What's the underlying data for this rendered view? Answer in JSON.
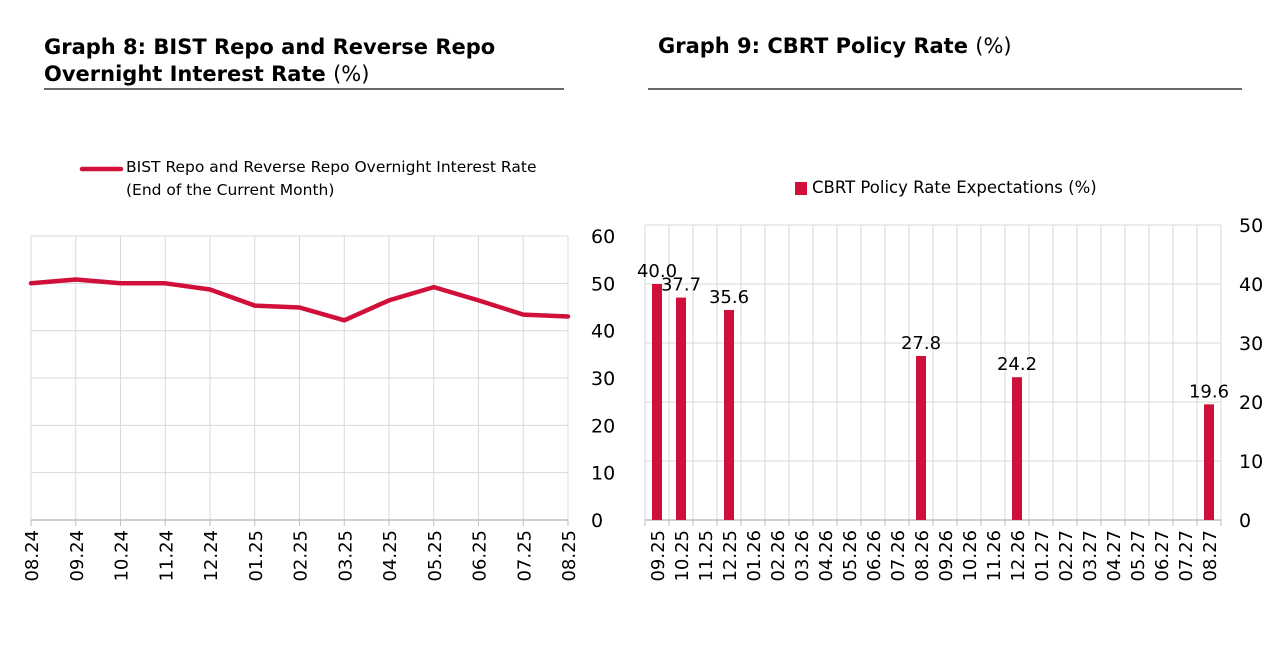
{
  "graph8": {
    "title": "Graph 8: BIST Repo and Reverse Repo Overnight Interest Rate",
    "unit": "(%)"
  },
  "graph9": {
    "title": "Graph 9: CBRT Policy Rate",
    "unit": "(%)"
  },
  "colors": {
    "series": "#d0103a",
    "grid": "#d9d9d9",
    "axis": "#bfbfbf",
    "rule": "#6b6b6b"
  },
  "chart_data": [
    {
      "type": "line",
      "title": "Graph 8: BIST Repo and Reverse Repo Overnight Interest Rate (%)",
      "legend": [
        "BIST Repo and Reverse Repo Overnight Interest Rate",
        "(End of the Current Month)"
      ],
      "legend_position": "top",
      "categories": [
        "08.24",
        "09.24",
        "10.24",
        "11.24",
        "12.24",
        "01.25",
        "02.25",
        "03.25",
        "04.25",
        "05.25",
        "06.25",
        "07.25",
        "08.25"
      ],
      "series": [
        {
          "name": "BIST Repo and Reverse Repo Overnight Interest Rate (End of the Current Month)",
          "values": [
            50.0,
            50.8,
            50.0,
            50.0,
            48.7,
            45.3,
            44.9,
            42.2,
            46.4,
            49.2,
            46.4,
            43.4,
            43.0
          ]
        }
      ],
      "yticks": [
        0,
        10,
        20,
        30,
        40,
        50,
        60
      ],
      "ylim": [
        0,
        60
      ],
      "y_axis_side": "right",
      "grid": true
    },
    {
      "type": "bar",
      "title": "Graph 9: CBRT Policy Rate (%)",
      "legend": [
        "CBRT Policy Rate Expectations (%)"
      ],
      "legend_position": "top",
      "categories": [
        "09.25",
        "10.25",
        "11.25",
        "12.25",
        "01.26",
        "02.26",
        "03.26",
        "04.26",
        "05.26",
        "06.26",
        "07.26",
        "08.26",
        "09.26",
        "10.26",
        "11.26",
        "12.26",
        "01.27",
        "02.27",
        "03.27",
        "04.27",
        "05.27",
        "06.27",
        "07.27",
        "08.27"
      ],
      "series": [
        {
          "name": "CBRT Policy Rate Expectations (%)",
          "values": [
            40.0,
            37.7,
            null,
            35.6,
            null,
            null,
            null,
            null,
            null,
            null,
            null,
            27.8,
            null,
            null,
            null,
            24.2,
            null,
            null,
            null,
            null,
            null,
            null,
            null,
            19.6
          ]
        }
      ],
      "data_labels": [
        "40.0",
        "37.7",
        "",
        "35.6",
        "",
        "",
        "",
        "",
        "",
        "",
        "",
        "27.8",
        "",
        "",
        "",
        "24.2",
        "",
        "",
        "",
        "",
        "",
        "",
        "",
        "19.6"
      ],
      "yticks": [
        0,
        10,
        20,
        30,
        40,
        50
      ],
      "ylim": [
        0,
        50
      ],
      "y_axis_side": "right",
      "grid": true
    }
  ]
}
